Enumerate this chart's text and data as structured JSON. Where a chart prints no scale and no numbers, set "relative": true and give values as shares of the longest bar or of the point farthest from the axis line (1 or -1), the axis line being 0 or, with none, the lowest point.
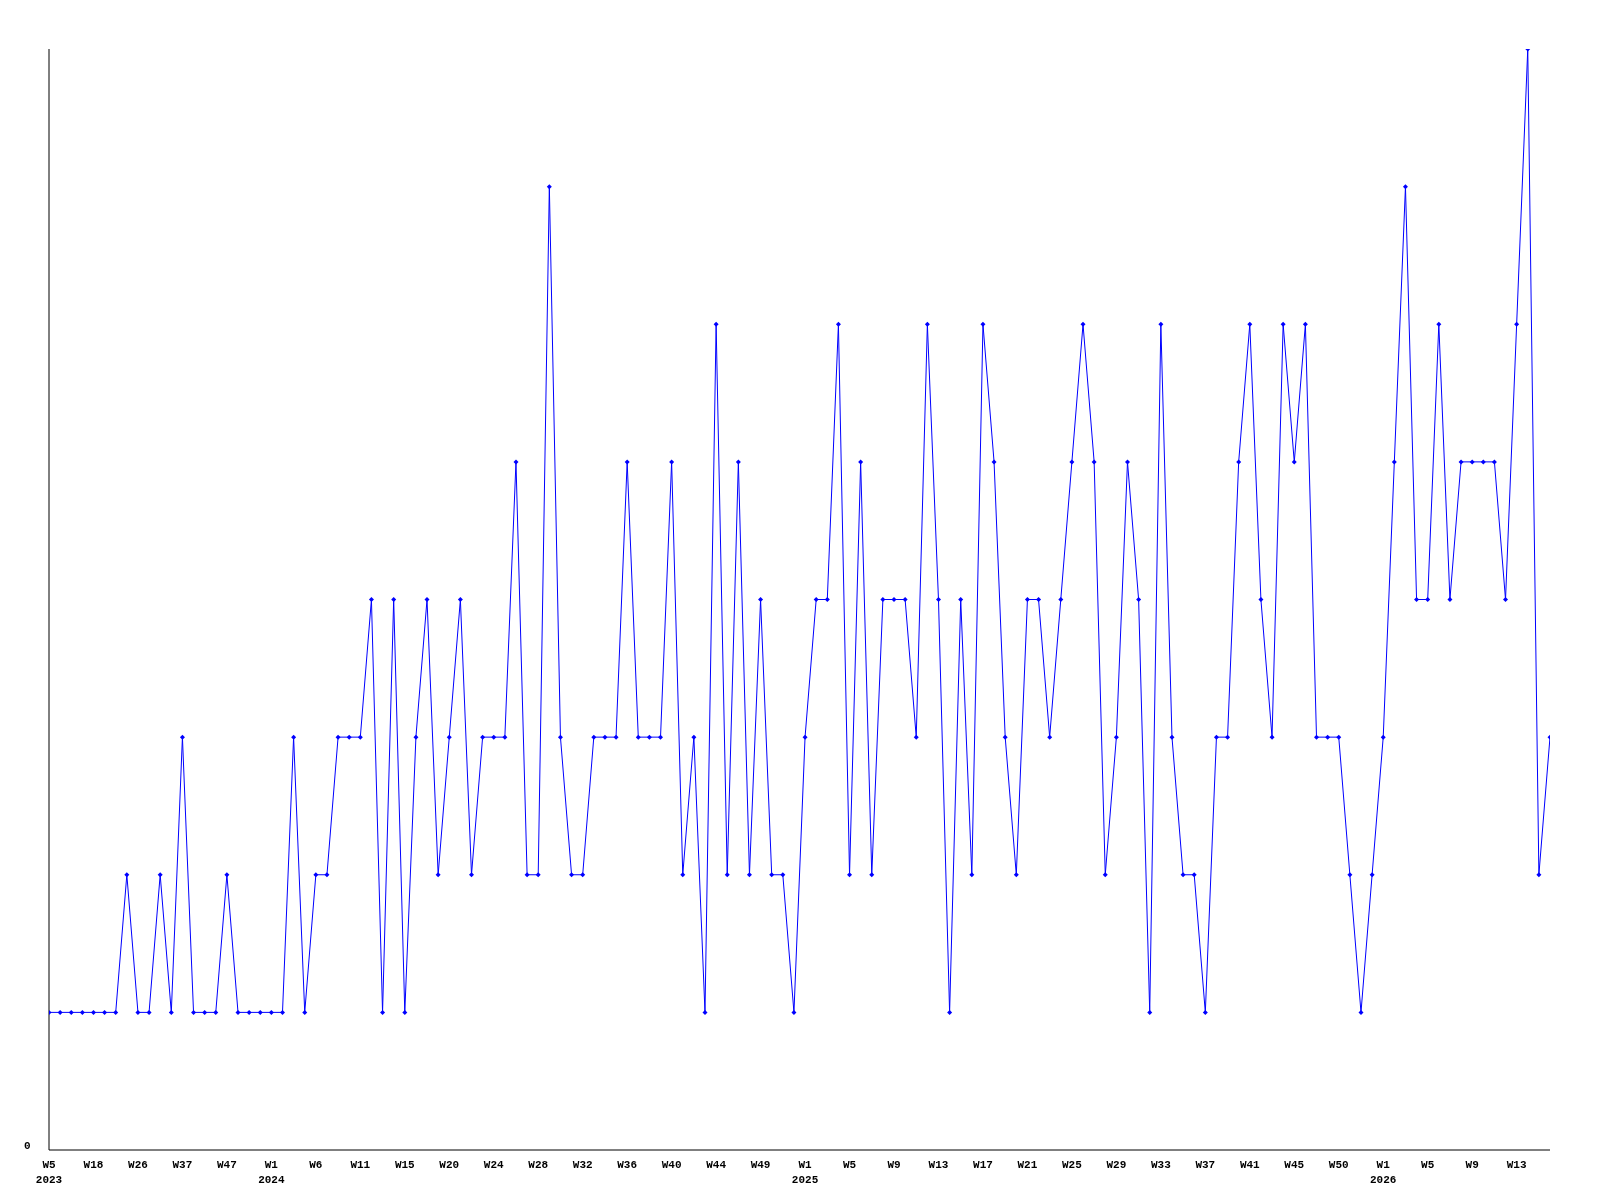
{
  "chart_data": {
    "type": "line",
    "relative": true,
    "categories": [
      "W5\n2023",
      null,
      null,
      null,
      "W18",
      null,
      null,
      null,
      "W26",
      null,
      null,
      null,
      "W37",
      null,
      null,
      null,
      "W47",
      null,
      null,
      null,
      "W1\n2024",
      null,
      null,
      null,
      "W6",
      null,
      null,
      null,
      "W11",
      null,
      null,
      null,
      "W15",
      null,
      null,
      null,
      "W20",
      null,
      null,
      null,
      "W24",
      null,
      null,
      null,
      "W28",
      null,
      null,
      null,
      "W32",
      null,
      null,
      null,
      "W36",
      null,
      null,
      null,
      "W40",
      null,
      null,
      null,
      "W44",
      null,
      null,
      null,
      "W49",
      null,
      null,
      null,
      "W1\n2025",
      null,
      null,
      null,
      "W5",
      null,
      null,
      null,
      "W9",
      null,
      null,
      null,
      "W13",
      null,
      null,
      null,
      "W17",
      null,
      null,
      null,
      "W21",
      null,
      null,
      null,
      "W25",
      null,
      null,
      null,
      "W29",
      null,
      null,
      null,
      "W33",
      null,
      null,
      null,
      "W37",
      null,
      null,
      null,
      "W41",
      null,
      null,
      null,
      "W45",
      null,
      null,
      null,
      "W50",
      null,
      null,
      null,
      "W1\n2026",
      null,
      null,
      null,
      "W5",
      null,
      null,
      null,
      "W9",
      null,
      null,
      null,
      "W13",
      null,
      null,
      null
    ],
    "series": [
      {
        "color": "#0000ff",
        "values": [
          0.125,
          0.125,
          0.125,
          0.125,
          0.125,
          0.125,
          0.125,
          0.25,
          0.125,
          0.125,
          0.25,
          0.125,
          0.375,
          0.125,
          0.125,
          0.125,
          0.25,
          0.125,
          0.125,
          0.125,
          0.125,
          0.125,
          0.375,
          0.125,
          0.25,
          0.25,
          0.375,
          0.375,
          0.375,
          0.5,
          0.125,
          0.5,
          0.125,
          0.375,
          0.5,
          0.25,
          0.375,
          0.5,
          0.25,
          0.375,
          0.375,
          0.375,
          0.625,
          0.25,
          0.25,
          0.875,
          0.375,
          0.25,
          0.25,
          0.375,
          0.375,
          0.375,
          0.625,
          0.375,
          0.375,
          0.375,
          0.625,
          0.25,
          0.375,
          0.125,
          0.75,
          0.25,
          0.625,
          0.25,
          0.5,
          0.25,
          0.25,
          0.125,
          0.375,
          0.5,
          0.5,
          0.75,
          0.25,
          0.625,
          0.25,
          0.5,
          0.5,
          0.5,
          0.375,
          0.75,
          0.5,
          0.125,
          0.5,
          0.25,
          0.75,
          0.625,
          0.375,
          0.25,
          0.5,
          0.5,
          0.375,
          0.5,
          0.625,
          0.75,
          0.625,
          0.25,
          0.375,
          0.625,
          0.5,
          0.125,
          0.75,
          0.375,
          0.25,
          0.25,
          0.125,
          0.375,
          0.375,
          0.625,
          0.75,
          0.5,
          0.375,
          0.75,
          0.625,
          0.75,
          0.375,
          0.375,
          0.375,
          0.25,
          0.125,
          0.25,
          0.375,
          0.625,
          0.875,
          0.5,
          0.5,
          0.75,
          0.5,
          0.625,
          0.625,
          0.625,
          0.625,
          0.5,
          0.75,
          1,
          0.25,
          0.375
        ]
      }
    ],
    "annotations": [
      "0"
    ],
    "marker": "diamond",
    "line_style": "solid",
    "grid": false
  }
}
